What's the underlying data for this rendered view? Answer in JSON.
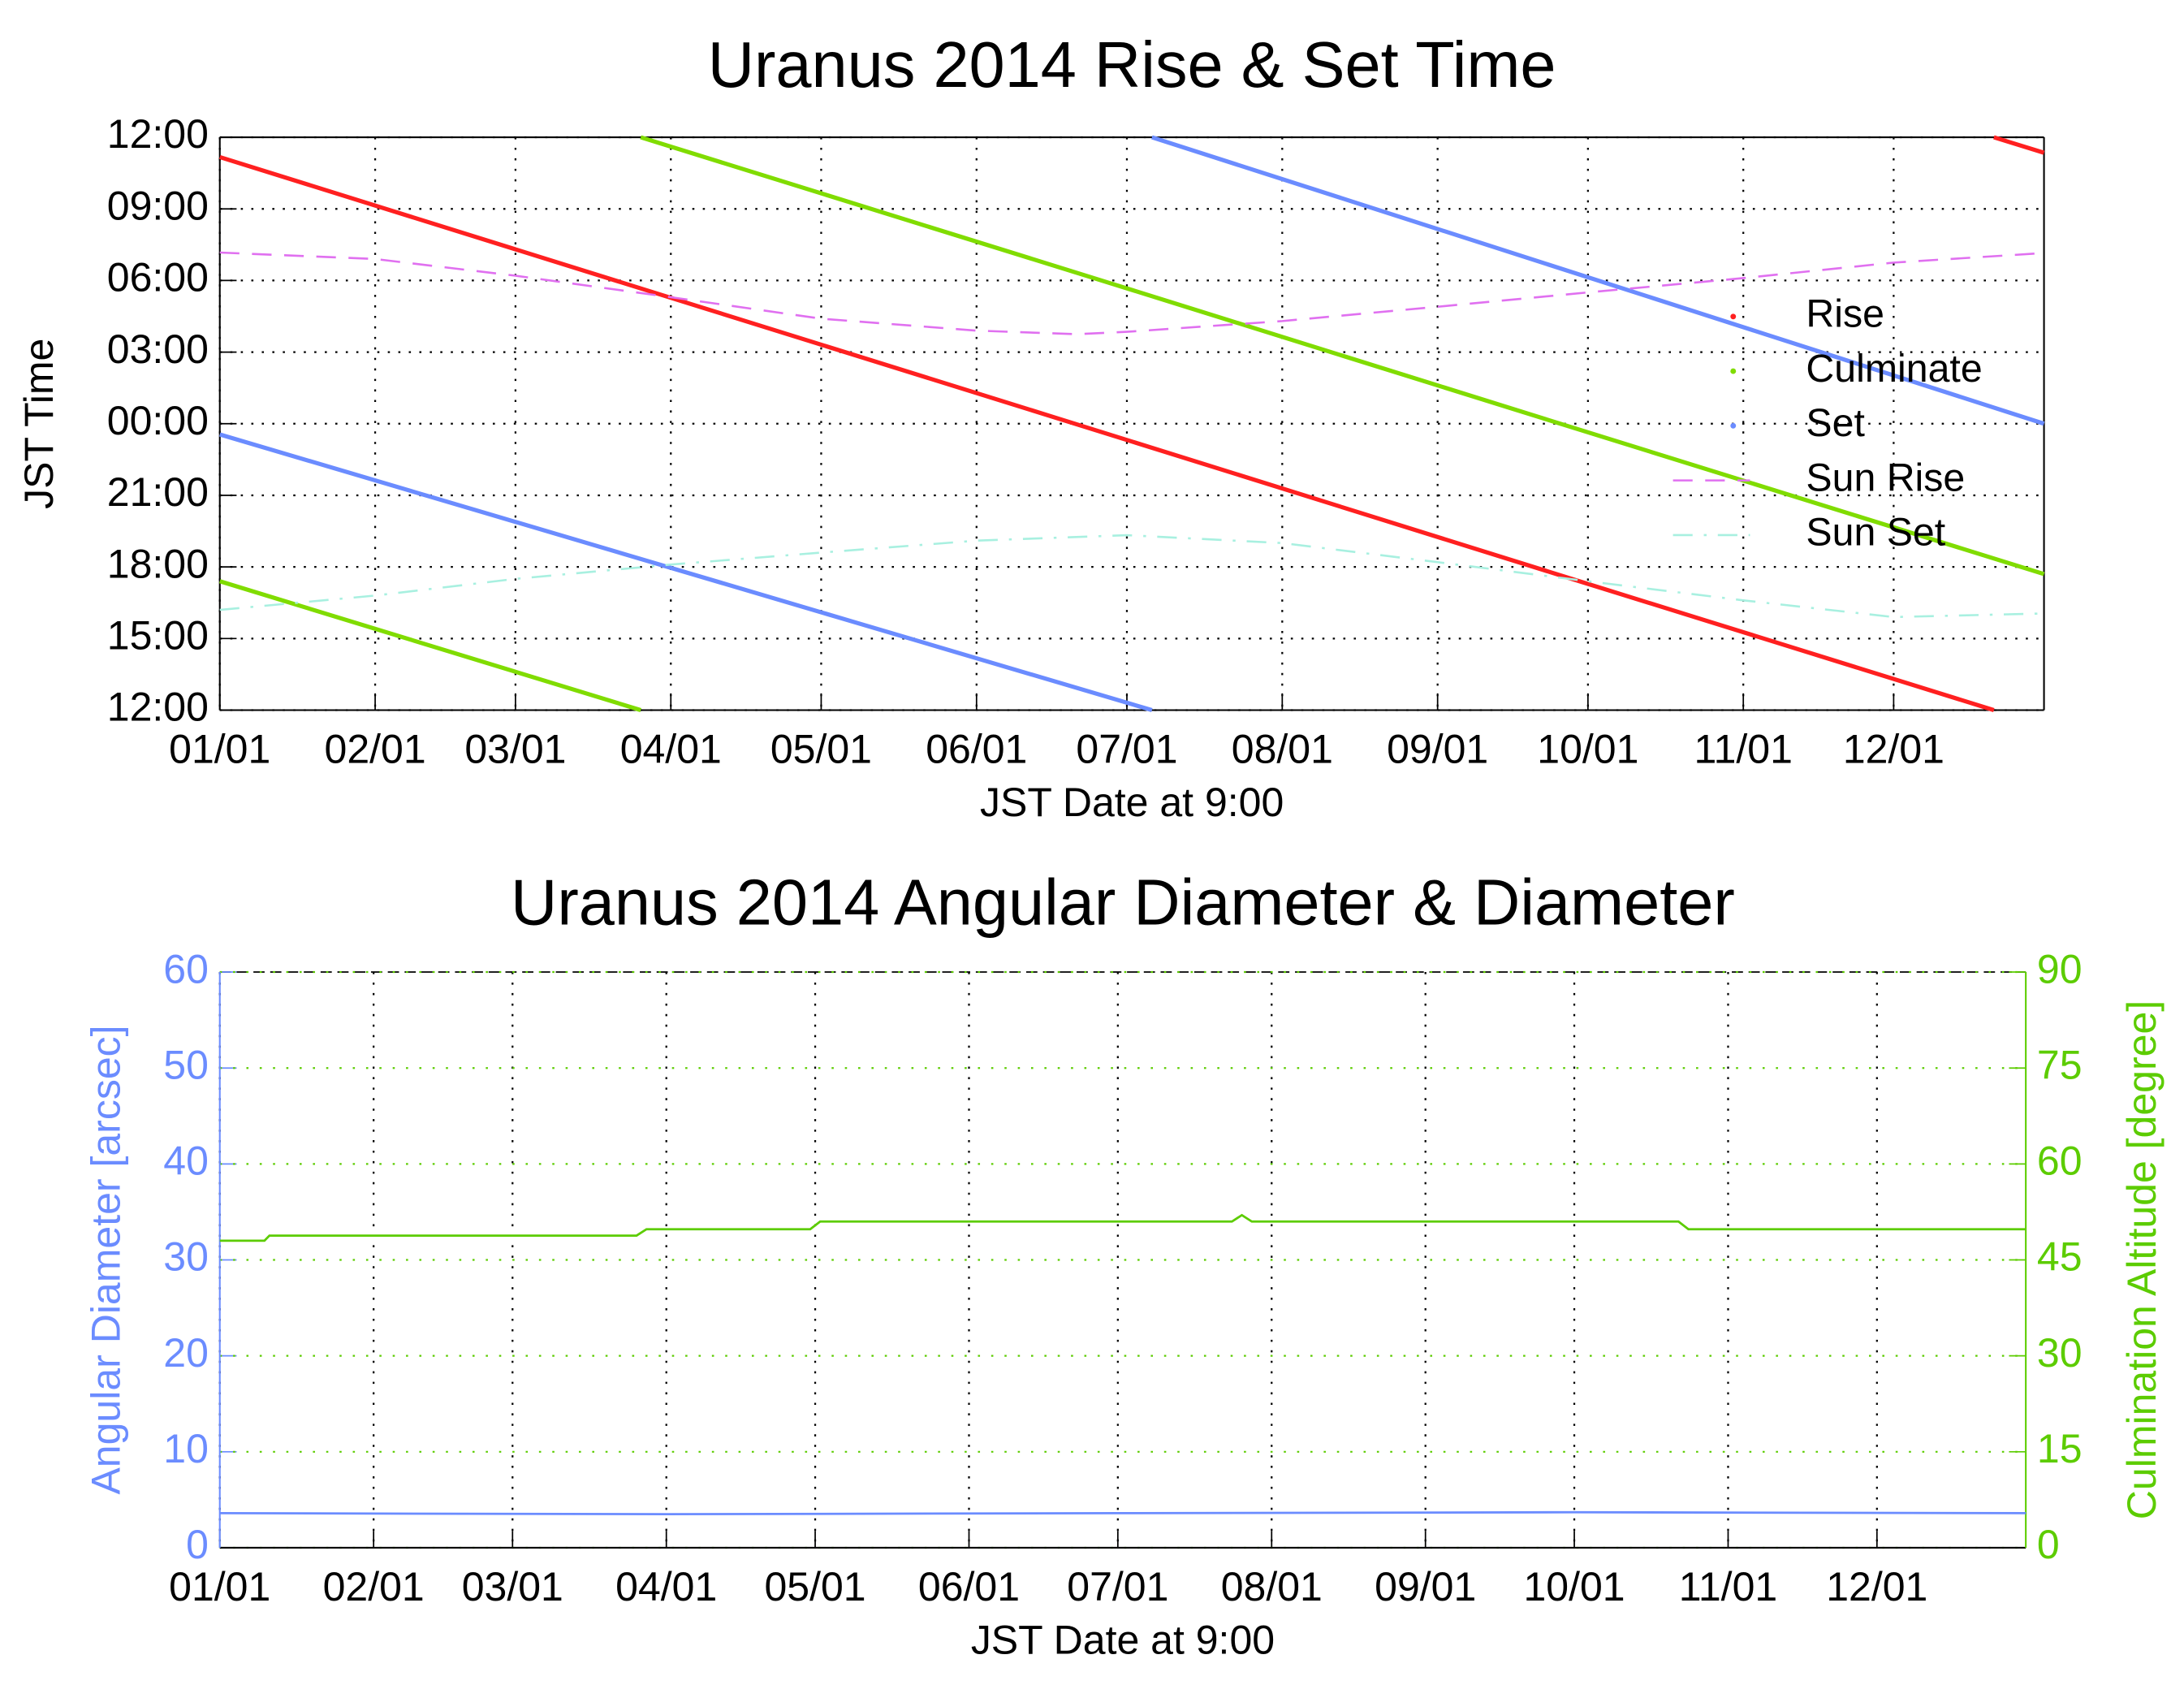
{
  "chart_data": [
    {
      "type": "line",
      "title": "Uranus 2014 Rise & Set Time",
      "xlabel": "JST Date at 9:00",
      "ylabel": "JST Time",
      "xlim": [
        1,
        365
      ],
      "xticks": [
        {
          "value": 1,
          "label": "01/01"
        },
        {
          "value": 32,
          "label": "02/01"
        },
        {
          "value": 60,
          "label": "03/01"
        },
        {
          "value": 91,
          "label": "04/01"
        },
        {
          "value": 121,
          "label": "05/01"
        },
        {
          "value": 152,
          "label": "06/01"
        },
        {
          "value": 182,
          "label": "07/01"
        },
        {
          "value": 213,
          "label": "08/01"
        },
        {
          "value": 244,
          "label": "09/01"
        },
        {
          "value": 274,
          "label": "10/01"
        },
        {
          "value": 305,
          "label": "11/01"
        },
        {
          "value": 335,
          "label": "12/01"
        }
      ],
      "ylim": [
        12,
        36
      ],
      "yticks": [
        {
          "value": 12,
          "label": "12:00"
        },
        {
          "value": 15,
          "label": "15:00"
        },
        {
          "value": 18,
          "label": "18:00"
        },
        {
          "value": 21,
          "label": "21:00"
        },
        {
          "value": 24,
          "label": "00:00"
        },
        {
          "value": 27,
          "label": "03:00"
        },
        {
          "value": 30,
          "label": "06:00"
        },
        {
          "value": 33,
          "label": "09:00"
        },
        {
          "value": 36,
          "label": "12:00"
        }
      ],
      "grid": true,
      "legend": "right",
      "series": [
        {
          "name": "Rise",
          "color": "#ff2020",
          "x": [
            1,
            90,
            180,
            270,
            355,
            null,
            355,
            365
          ],
          "values": [
            35.17,
            29.34,
            23.45,
            17.55,
            12,
            null,
            36,
            35.35
          ]
        },
        {
          "name": "Culminate",
          "color": "#80dc00",
          "x": [
            1,
            85,
            null,
            85,
            180,
            270,
            365
          ],
          "values": [
            17.4,
            12,
            null,
            36,
            29.8,
            23.9,
            17.7
          ]
        },
        {
          "name": "Set",
          "color": "#6b8cff",
          "x": [
            1,
            187,
            null,
            187,
            365
          ],
          "values": [
            23.55,
            12,
            null,
            36,
            24
          ]
        },
        {
          "name": "Sun Rise",
          "color": "#e070f0",
          "dash": "dashed",
          "x": [
            1,
            32,
            60,
            91,
            121,
            152,
            172,
            182,
            213,
            244,
            274,
            305,
            335,
            365
          ],
          "values": [
            31.17,
            30.9,
            30.2,
            29.3,
            28.4,
            27.9,
            27.75,
            27.85,
            28.3,
            28.9,
            29.5,
            30.1,
            30.75,
            31.15
          ]
        },
        {
          "name": "Sun Set",
          "color": "#a8f0e0",
          "dash": "dashdot",
          "x": [
            1,
            32,
            60,
            91,
            121,
            152,
            182,
            213,
            244,
            274,
            305,
            335,
            365
          ],
          "values": [
            16.2,
            16.8,
            17.5,
            18.1,
            18.6,
            19.1,
            19.33,
            19.0,
            18.2,
            17.4,
            16.6,
            15.9,
            16.05
          ]
        }
      ]
    },
    {
      "type": "line",
      "title": "Uranus 2014 Angular Diameter & Diameter",
      "xlabel": "JST Date at 9:00",
      "ylabel": "Angular Diameter [arcsec]",
      "y2label": "Culmination Altitude [degree]",
      "y_color": "#6b8cff",
      "y2_color": "#5ccc00",
      "xlim": [
        1,
        365
      ],
      "xticks": [
        {
          "value": 1,
          "label": "01/01"
        },
        {
          "value": 32,
          "label": "02/01"
        },
        {
          "value": 60,
          "label": "03/01"
        },
        {
          "value": 91,
          "label": "04/01"
        },
        {
          "value": 121,
          "label": "05/01"
        },
        {
          "value": 152,
          "label": "06/01"
        },
        {
          "value": 182,
          "label": "07/01"
        },
        {
          "value": 213,
          "label": "08/01"
        },
        {
          "value": 244,
          "label": "09/01"
        },
        {
          "value": 274,
          "label": "10/01"
        },
        {
          "value": 305,
          "label": "11/01"
        },
        {
          "value": 335,
          "label": "12/01"
        }
      ],
      "ylim": [
        0,
        60
      ],
      "yticks": [
        0,
        10,
        20,
        30,
        40,
        50,
        60
      ],
      "y2lim": [
        0,
        90
      ],
      "y2ticks": [
        0,
        15,
        30,
        45,
        60,
        75,
        90
      ],
      "grid": true,
      "series": [
        {
          "name": "Angular Diameter",
          "color": "#6b8cff",
          "x": [
            1,
            91,
            182,
            274,
            365
          ],
          "values": [
            3.6,
            3.5,
            3.6,
            3.7,
            3.6
          ]
        },
        {
          "name": "Culmination Altitude",
          "color": "#5ccc00",
          "axis": "y2",
          "x": [
            1,
            10,
            11,
            85,
            87,
            120,
            122,
            205,
            207,
            209,
            295,
            297,
            365
          ],
          "values": [
            48,
            48,
            48.8,
            48.8,
            49.8,
            49.8,
            51,
            51,
            52,
            51,
            51,
            49.8,
            49.8
          ]
        }
      ]
    }
  ]
}
